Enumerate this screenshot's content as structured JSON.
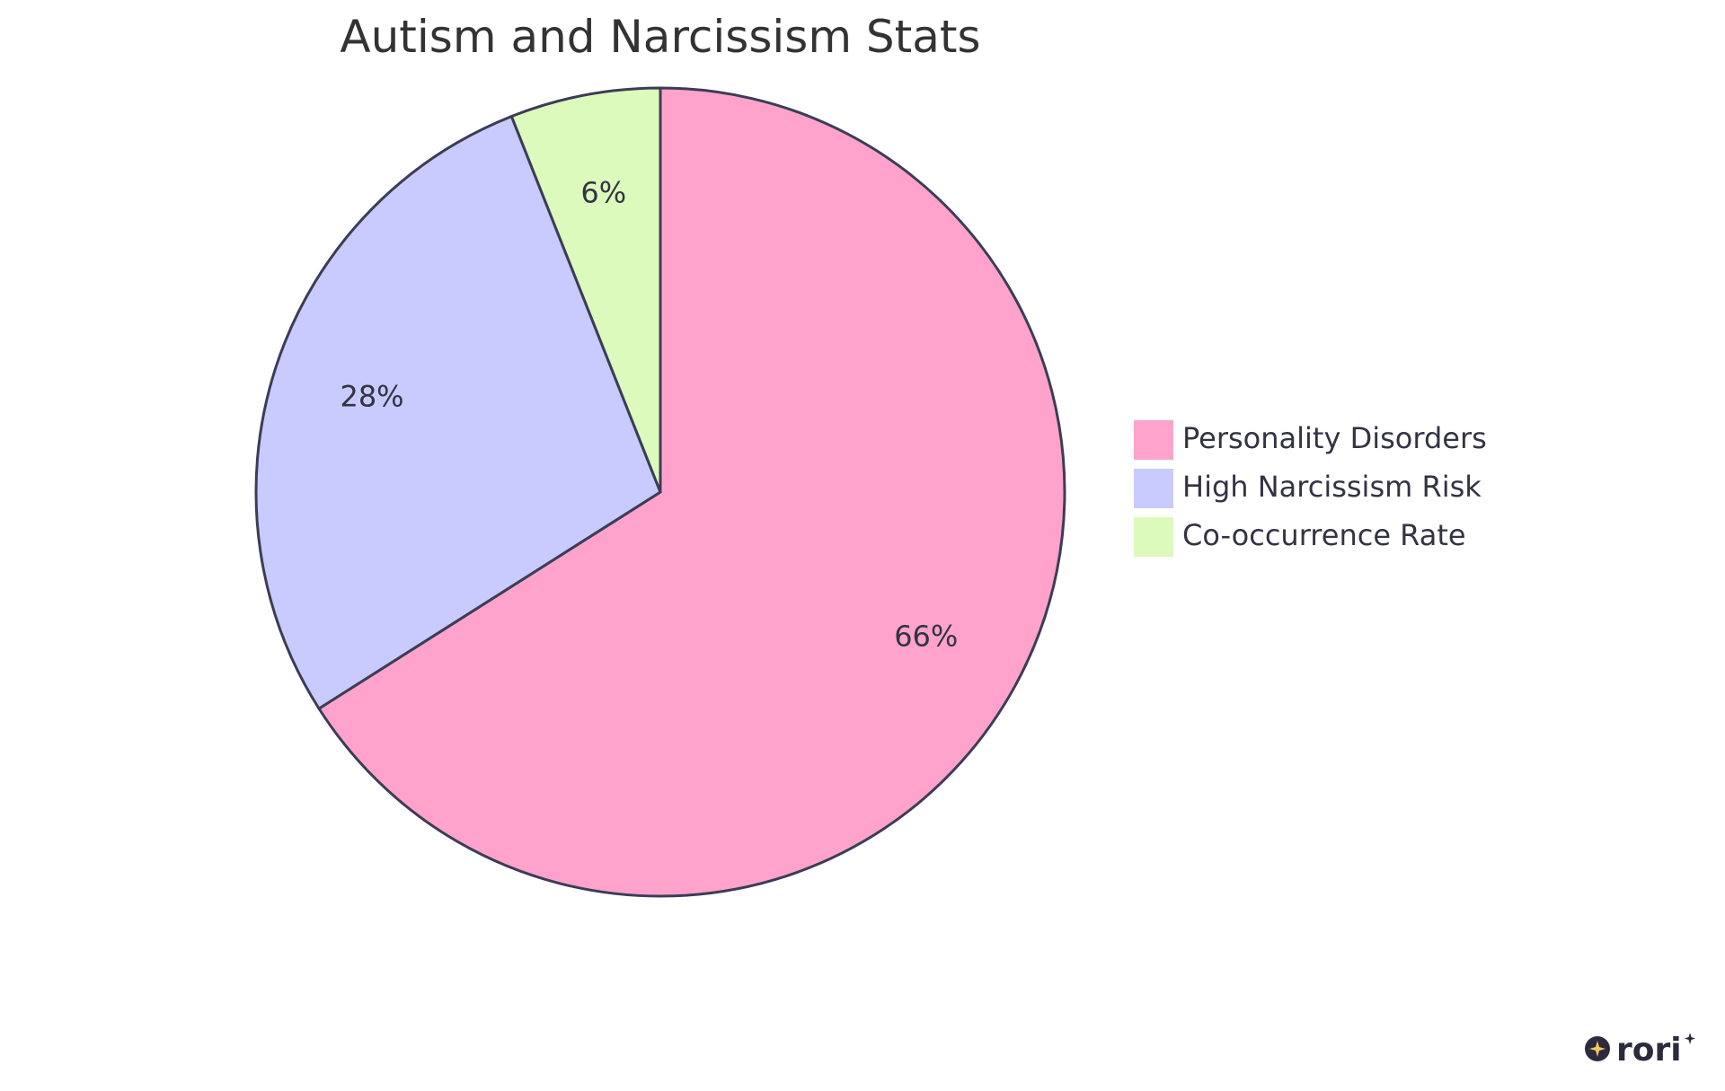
{
  "chart_data": {
    "type": "pie",
    "title": "Autism and Narcissism Stats",
    "slices": [
      {
        "label": "Personality Disorders",
        "value": 66,
        "display": "66%",
        "color": "#ffa3cc"
      },
      {
        "label": "High Narcissism Risk",
        "value": 28,
        "display": "28%",
        "color": "#c9cafe"
      },
      {
        "label": "Co-occurrence Rate",
        "value": 6,
        "display": "6%",
        "color": "#dcfabc"
      }
    ],
    "legend_position": "right",
    "stroke_color": "#3b3d55"
  },
  "brand": {
    "logo_text": "rori"
  }
}
